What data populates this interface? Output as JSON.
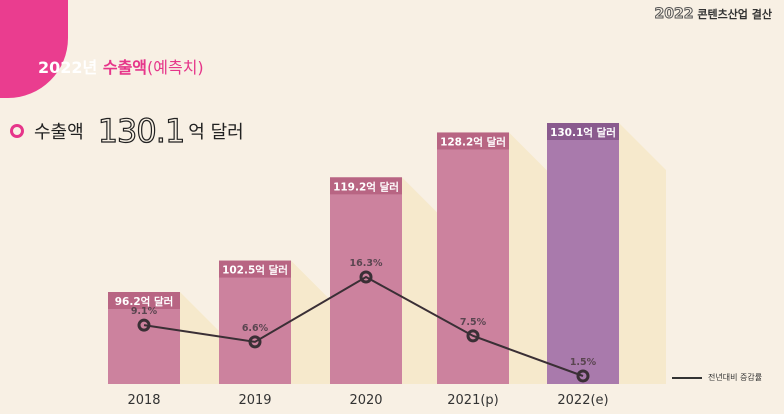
{
  "header": {
    "corner_year": "2022",
    "corner_label": "콘텐츠산업 결산",
    "title_year": "2022년",
    "title_main": "수출액",
    "title_paren": "(예측치)",
    "summary_label": "수출액",
    "summary_value": "130.1",
    "summary_unit": "억 달러"
  },
  "colors": {
    "accent": "#ea3d8f",
    "bar": "#cc829e",
    "bar_label_bg": "#b86583",
    "bar_highlight": "#a97aac",
    "bar_highlight_label_bg": "#8a5a8e",
    "shadow": "#f6e9cc",
    "line": "#3a2f35",
    "background": "#f8f0e4"
  },
  "chart_data": {
    "type": "bar",
    "title": "2022년 수출액(예측치)",
    "categories": [
      "2018",
      "2019",
      "2020",
      "2021(p)",
      "2022(e)"
    ],
    "series": [
      {
        "name": "수출액 (억 달러)",
        "values": [
          96.2,
          102.5,
          119.2,
          128.2,
          130.1
        ],
        "labels": [
          "96.2억 달러",
          "102.5억 달러",
          "119.2억 달러",
          "128.2억 달러",
          "130.1억 달러"
        ]
      },
      {
        "name": "전년대비 증감률",
        "type": "line",
        "values": [
          9.1,
          6.6,
          16.3,
          7.5,
          1.5
        ],
        "labels": [
          "9.1%",
          "6.6%",
          "16.3%",
          "7.5%",
          "1.5%"
        ]
      }
    ],
    "legend": {
      "label": "전년대비 증감률",
      "position": "bottom-right"
    },
    "highlight_index": 4,
    "xlabel": "",
    "ylabel": ""
  }
}
